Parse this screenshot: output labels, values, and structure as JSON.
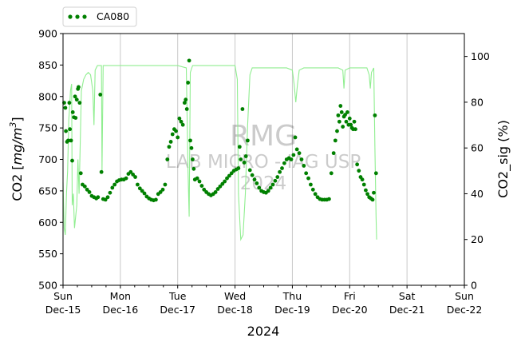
{
  "chart_data": {
    "type": "scatter",
    "xlabel": "2024",
    "ylabel": "CO2 [mg/m³]",
    "ylabel_parts": [
      "CO2 [",
      "mg/m",
      "3",
      "]"
    ],
    "y2label": "CO2_sig (%)",
    "ylim": [
      500,
      900
    ],
    "y2lim": [
      0,
      110
    ],
    "xlim": [
      0,
      7
    ],
    "grid": "vertical gridlines at midnight",
    "legend_position": "top-left",
    "y_ticks": [
      500,
      550,
      600,
      650,
      700,
      750,
      800,
      850,
      900
    ],
    "y2_ticks": [
      0,
      20,
      40,
      60,
      80,
      100
    ],
    "x_ticks": [
      {
        "day": "Sun",
        "date": "Dec-15"
      },
      {
        "day": "Mon",
        "date": "Dec-16"
      },
      {
        "day": "Tue",
        "date": "Dec-17"
      },
      {
        "day": "Wed",
        "date": "Dec-18"
      },
      {
        "day": "Thu",
        "date": "Dec-19"
      },
      {
        "day": "Fri",
        "date": "Dec-20"
      },
      {
        "day": "Sat",
        "date": "Dec-21"
      },
      {
        "day": "Sun",
        "date": "Dec-22"
      }
    ],
    "watermark": [
      "RMG",
      "LAB MICRO - IAG USP",
      "2024"
    ],
    "colors": {
      "co2": "#008000",
      "signal": "#90ee90"
    },
    "series": [
      {
        "name": "CA080",
        "axis": "left",
        "style": "dots",
        "points": [
          [
            0.02,
            790
          ],
          [
            0.04,
            782
          ],
          [
            0.05,
            745
          ],
          [
            0.07,
            728
          ],
          [
            0.09,
            730
          ],
          [
            0.11,
            790
          ],
          [
            0.12,
            748
          ],
          [
            0.14,
            730
          ],
          [
            0.16,
            698
          ],
          [
            0.17,
            775
          ],
          [
            0.19,
            767
          ],
          [
            0.21,
            800
          ],
          [
            0.22,
            766
          ],
          [
            0.24,
            795
          ],
          [
            0.26,
            812
          ],
          [
            0.27,
            815
          ],
          [
            0.29,
            790
          ],
          [
            0.31,
            678
          ],
          [
            0.34,
            660
          ],
          [
            0.38,
            657
          ],
          [
            0.42,
            652
          ],
          [
            0.46,
            648
          ],
          [
            0.5,
            642
          ],
          [
            0.54,
            640
          ],
          [
            0.58,
            638
          ],
          [
            0.61,
            640
          ],
          [
            0.65,
            803
          ],
          [
            0.67,
            680
          ],
          [
            0.7,
            637
          ],
          [
            0.74,
            636
          ],
          [
            0.78,
            640
          ],
          [
            0.82,
            647
          ],
          [
            0.86,
            655
          ],
          [
            0.9,
            660
          ],
          [
            0.94,
            665
          ],
          [
            0.98,
            667
          ],
          [
            1.02,
            668
          ],
          [
            1.06,
            668
          ],
          [
            1.1,
            670
          ],
          [
            1.14,
            677
          ],
          [
            1.18,
            680
          ],
          [
            1.22,
            676
          ],
          [
            1.26,
            672
          ],
          [
            1.3,
            660
          ],
          [
            1.34,
            654
          ],
          [
            1.38,
            650
          ],
          [
            1.42,
            646
          ],
          [
            1.46,
            641
          ],
          [
            1.5,
            638
          ],
          [
            1.54,
            636
          ],
          [
            1.58,
            635
          ],
          [
            1.62,
            636
          ],
          [
            1.66,
            645
          ],
          [
            1.7,
            648
          ],
          [
            1.74,
            652
          ],
          [
            1.78,
            660
          ],
          [
            1.82,
            700
          ],
          [
            1.85,
            720
          ],
          [
            1.88,
            728
          ],
          [
            1.91,
            740
          ],
          [
            1.94,
            748
          ],
          [
            1.97,
            745
          ],
          [
            2.0,
            735
          ],
          [
            2.03,
            765
          ],
          [
            2.06,
            760
          ],
          [
            2.09,
            755
          ],
          [
            2.12,
            790
          ],
          [
            2.14,
            795
          ],
          [
            2.16,
            780
          ],
          [
            2.18,
            822
          ],
          [
            2.2,
            857
          ],
          [
            2.22,
            730
          ],
          [
            2.24,
            718
          ],
          [
            2.26,
            700
          ],
          [
            2.28,
            685
          ],
          [
            2.3,
            668
          ],
          [
            2.34,
            670
          ],
          [
            2.38,
            665
          ],
          [
            2.42,
            658
          ],
          [
            2.46,
            652
          ],
          [
            2.5,
            648
          ],
          [
            2.54,
            645
          ],
          [
            2.58,
            643
          ],
          [
            2.62,
            645
          ],
          [
            2.66,
            648
          ],
          [
            2.7,
            653
          ],
          [
            2.74,
            657
          ],
          [
            2.78,
            661
          ],
          [
            2.82,
            665
          ],
          [
            2.86,
            670
          ],
          [
            2.9,
            674
          ],
          [
            2.94,
            678
          ],
          [
            2.98,
            682
          ],
          [
            3.02,
            684
          ],
          [
            3.06,
            686
          ],
          [
            3.08,
            720
          ],
          [
            3.1,
            700
          ],
          [
            3.13,
            780
          ],
          [
            3.16,
            695
          ],
          [
            3.19,
            705
          ],
          [
            3.22,
            730
          ],
          [
            3.26,
            683
          ],
          [
            3.3,
            675
          ],
          [
            3.34,
            668
          ],
          [
            3.38,
            662
          ],
          [
            3.42,
            655
          ],
          [
            3.46,
            650
          ],
          [
            3.5,
            648
          ],
          [
            3.54,
            647
          ],
          [
            3.58,
            650
          ],
          [
            3.62,
            655
          ],
          [
            3.66,
            660
          ],
          [
            3.7,
            666
          ],
          [
            3.74,
            672
          ],
          [
            3.78,
            680
          ],
          [
            3.82,
            686
          ],
          [
            3.86,
            694
          ],
          [
            3.9,
            700
          ],
          [
            3.94,
            702
          ],
          [
            3.98,
            700
          ],
          [
            4.02,
            707
          ],
          [
            4.05,
            735
          ],
          [
            4.08,
            716
          ],
          [
            4.12,
            710
          ],
          [
            4.16,
            700
          ],
          [
            4.2,
            690
          ],
          [
            4.24,
            678
          ],
          [
            4.28,
            670
          ],
          [
            4.32,
            660
          ],
          [
            4.36,
            652
          ],
          [
            4.4,
            645
          ],
          [
            4.44,
            640
          ],
          [
            4.48,
            637
          ],
          [
            4.52,
            636
          ],
          [
            4.56,
            636
          ],
          [
            4.6,
            636
          ],
          [
            4.64,
            637
          ],
          [
            4.68,
            678
          ],
          [
            4.72,
            710
          ],
          [
            4.75,
            730
          ],
          [
            4.78,
            745
          ],
          [
            4.8,
            770
          ],
          [
            4.82,
            760
          ],
          [
            4.84,
            785
          ],
          [
            4.86,
            775
          ],
          [
            4.88,
            752
          ],
          [
            4.9,
            768
          ],
          [
            4.92,
            771
          ],
          [
            4.94,
            760
          ],
          [
            4.96,
            775
          ],
          [
            4.98,
            755
          ],
          [
            5.0,
            765
          ],
          [
            5.02,
            755
          ],
          [
            5.04,
            750
          ],
          [
            5.06,
            748
          ],
          [
            5.08,
            760
          ],
          [
            5.1,
            748
          ],
          [
            5.13,
            692
          ],
          [
            5.16,
            682
          ],
          [
            5.19,
            672
          ],
          [
            5.22,
            668
          ],
          [
            5.25,
            660
          ],
          [
            5.28,
            651
          ],
          [
            5.31,
            645
          ],
          [
            5.34,
            640
          ],
          [
            5.37,
            638
          ],
          [
            5.4,
            636
          ],
          [
            5.42,
            647
          ],
          [
            5.44,
            770
          ],
          [
            5.46,
            678
          ]
        ]
      },
      {
        "name": "CO2_sig",
        "axis": "right",
        "style": "line",
        "points": [
          [
            0.0,
            45
          ],
          [
            0.02,
            25
          ],
          [
            0.04,
            22
          ],
          [
            0.06,
            40
          ],
          [
            0.08,
            50
          ],
          [
            0.1,
            72
          ],
          [
            0.12,
            80
          ],
          [
            0.13,
            85
          ],
          [
            0.15,
            88
          ],
          [
            0.16,
            35
          ],
          [
            0.18,
            40
          ],
          [
            0.2,
            25
          ],
          [
            0.22,
            30
          ],
          [
            0.24,
            35
          ],
          [
            0.26,
            55
          ],
          [
            0.28,
            40
          ],
          [
            0.3,
            62
          ],
          [
            0.32,
            85
          ],
          [
            0.36,
            90
          ],
          [
            0.4,
            92
          ],
          [
            0.44,
            93
          ],
          [
            0.48,
            92
          ],
          [
            0.52,
            85
          ],
          [
            0.54,
            70
          ],
          [
            0.56,
            94
          ],
          [
            0.6,
            96
          ],
          [
            0.64,
            96
          ],
          [
            0.67,
            96
          ],
          [
            0.68,
            50
          ],
          [
            0.7,
            96
          ],
          [
            0.8,
            96
          ],
          [
            1.0,
            96
          ],
          [
            1.2,
            96
          ],
          [
            1.4,
            96
          ],
          [
            1.6,
            96
          ],
          [
            1.8,
            96
          ],
          [
            2.0,
            96
          ],
          [
            2.15,
            95
          ],
          [
            2.18,
            50
          ],
          [
            2.2,
            30
          ],
          [
            2.22,
            93
          ],
          [
            2.26,
            96
          ],
          [
            2.4,
            96
          ],
          [
            2.6,
            96
          ],
          [
            2.8,
            96
          ],
          [
            3.0,
            96
          ],
          [
            3.04,
            90
          ],
          [
            3.06,
            40
          ],
          [
            3.1,
            20
          ],
          [
            3.14,
            22
          ],
          [
            3.18,
            40
          ],
          [
            3.22,
            70
          ],
          [
            3.26,
            92
          ],
          [
            3.3,
            95
          ],
          [
            3.5,
            95
          ],
          [
            3.7,
            95
          ],
          [
            3.9,
            95
          ],
          [
            4.0,
            94
          ],
          [
            4.03,
            88
          ],
          [
            4.06,
            80
          ],
          [
            4.09,
            88
          ],
          [
            4.12,
            94
          ],
          [
            4.2,
            95
          ],
          [
            4.4,
            95
          ],
          [
            4.6,
            95
          ],
          [
            4.8,
            95
          ],
          [
            4.88,
            94
          ],
          [
            4.9,
            86
          ],
          [
            4.92,
            94
          ],
          [
            5.0,
            95
          ],
          [
            5.2,
            95
          ],
          [
            5.3,
            95
          ],
          [
            5.34,
            92
          ],
          [
            5.36,
            86
          ],
          [
            5.38,
            93
          ],
          [
            5.42,
            95
          ],
          [
            5.44,
            60
          ],
          [
            5.46,
            30
          ],
          [
            5.47,
            20
          ]
        ]
      }
    ]
  }
}
